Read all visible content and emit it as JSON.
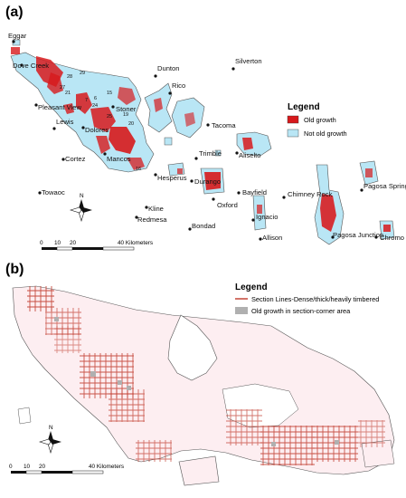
{
  "panel_a": {
    "label": "(a)",
    "legend": {
      "title": "Legend",
      "items": [
        {
          "label": "Old growth",
          "color": "#d7191c"
        },
        {
          "label": "Not old growth",
          "color": "#b9e6f5"
        }
      ]
    },
    "towns": [
      {
        "name": "Eggar"
      },
      {
        "name": "Dove Creek"
      },
      {
        "name": "Dunton"
      },
      {
        "name": "Silverton"
      },
      {
        "name": "Rico"
      },
      {
        "name": "Pleasant View"
      },
      {
        "name": "Stoner"
      },
      {
        "name": "Lewis"
      },
      {
        "name": "Dolores"
      },
      {
        "name": "Tacoma"
      },
      {
        "name": "Cortez"
      },
      {
        "name": "Mancos"
      },
      {
        "name": "Trimble"
      },
      {
        "name": "Hesperus"
      },
      {
        "name": "Durango"
      },
      {
        "name": "Aiiselto"
      },
      {
        "name": "Towaoc"
      },
      {
        "name": "Oxford"
      },
      {
        "name": "Bayfield"
      },
      {
        "name": "Chimney Rock"
      },
      {
        "name": "Pagosa Springs"
      },
      {
        "name": "Kline"
      },
      {
        "name": "Redmesa"
      },
      {
        "name": "Ignacio"
      },
      {
        "name": "Bondad"
      },
      {
        "name": "Allison"
      },
      {
        "name": "Pagosa Junction"
      },
      {
        "name": "Chromo"
      }
    ],
    "section_numbers": [
      "29",
      "28",
      "27",
      "7",
      "6",
      "15",
      "24",
      "25",
      "19",
      "20",
      "21",
      "16"
    ],
    "north_label": "N",
    "scale": {
      "ticks": [
        "0",
        "10",
        "20",
        "40 Kilometers"
      ]
    }
  },
  "panel_b": {
    "label": "(b)",
    "legend": {
      "title": "Legend",
      "items": [
        {
          "label": "Section Lines-Dense/thick/heavily timbered",
          "color": "#c0392b"
        },
        {
          "label": "Old growth in section-corner area",
          "color": "#b0b0b0"
        }
      ]
    },
    "north_label": "N",
    "scale": {
      "ticks": [
        "0",
        "10",
        "20",
        "40 Kilometers"
      ]
    }
  }
}
